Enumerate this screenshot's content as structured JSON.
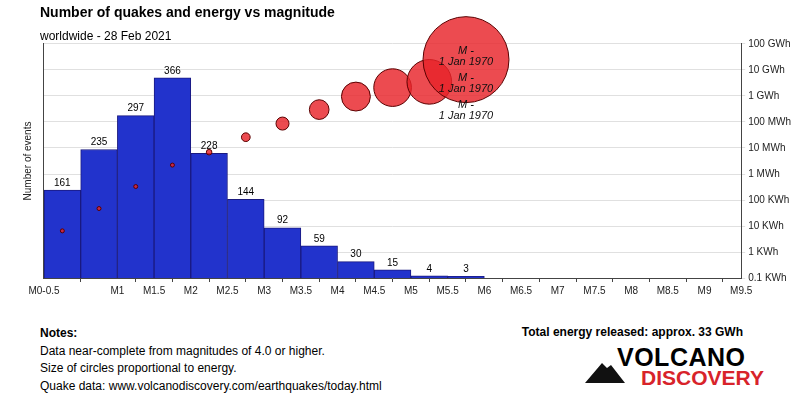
{
  "chart_data": {
    "type": "histogram",
    "title": "Number of quakes and energy vs magnitude",
    "subtitle": "worldwide - 28 Feb 2021",
    "y_label": "Number of events",
    "bins": [
      0,
      0.5,
      1,
      1.5,
      2,
      2.5,
      3,
      3.5,
      4,
      4.5,
      5,
      5.5,
      6
    ],
    "values": [
      161,
      235,
      297,
      366,
      228,
      144,
      92,
      59,
      30,
      15,
      4,
      3
    ],
    "color": "#2233cc",
    "data_labels": true,
    "xlim": [
      0,
      9.5
    ],
    "xticks": [
      {
        "value": 0,
        "label": "M0-0.5"
      },
      {
        "value": 1,
        "label": "M1"
      },
      {
        "value": 1.5,
        "label": "M1.5"
      },
      {
        "value": 2,
        "label": "M2"
      },
      {
        "value": 2.5,
        "label": "M2.5"
      },
      {
        "value": 3,
        "label": "M3"
      },
      {
        "value": 3.5,
        "label": "M3.5"
      },
      {
        "value": 4,
        "label": "M4"
      },
      {
        "value": 4.5,
        "label": "M4.5"
      },
      {
        "value": 5,
        "label": "M5"
      },
      {
        "value": 5.5,
        "label": "M5.5"
      },
      {
        "value": 6,
        "label": "M6"
      },
      {
        "value": 6.5,
        "label": "M6.5"
      },
      {
        "value": 7,
        "label": "M7"
      },
      {
        "value": 7.5,
        "label": "M7.5"
      },
      {
        "value": 8,
        "label": "M8"
      },
      {
        "value": 8.5,
        "label": "M8.5"
      },
      {
        "value": 9,
        "label": "M9"
      },
      {
        "value": 9.5,
        "label": "M9.5"
      }
    ],
    "ylim": [
      0,
      428
    ],
    "series": [
      {
        "type": "bubble",
        "axis": "y2",
        "color": "#e8232a",
        "x": [
          0.25,
          0.75,
          1.25,
          1.75,
          2.25,
          2.75,
          3.25,
          3.75,
          4.25,
          4.75,
          5.25,
          5.75
        ],
        "values": [
          6.5,
          47,
          330,
          2200,
          6900,
          26000,
          87000,
          300000,
          950000,
          2100000,
          3500000,
          25000000
        ]
      }
    ],
    "y2lim": [
      0.1,
      100000000
    ],
    "y2ticks": [
      {
        "value": 0.1,
        "label": "0.1 KWh"
      },
      {
        "value": 1,
        "label": "1 KWh"
      },
      {
        "value": 10,
        "label": "10 KWh"
      },
      {
        "value": 100,
        "label": "100 KWh"
      },
      {
        "value": 1000,
        "label": "1 MWh"
      },
      {
        "value": 10000,
        "label": "10 MWh"
      },
      {
        "value": 100000,
        "label": "100 MWh"
      },
      {
        "value": 1000000,
        "label": "1 GWh"
      },
      {
        "value": 10000000,
        "label": "10 GWh"
      },
      {
        "value": 100000000,
        "label": "100 GWh"
      }
    ],
    "log": "y2",
    "grid": true,
    "annotations": [
      "M -\n1 Jan 1970",
      "M -\n1 Jan 1970",
      "M -\n1 Jan 1970"
    ],
    "notes": {
      "heading": "Notes:",
      "lines": [
        "Data near-complete from magnitudes of 4.0 or higher.",
        "Size of circles proportional to energy.",
        "Quake data: www.volcanodiscovery.com/earthquakes/today.html"
      ]
    },
    "total": "Total energy released: approx. 33 GWh",
    "logo": [
      "VOLCANO",
      "DISCOVERY"
    ]
  }
}
